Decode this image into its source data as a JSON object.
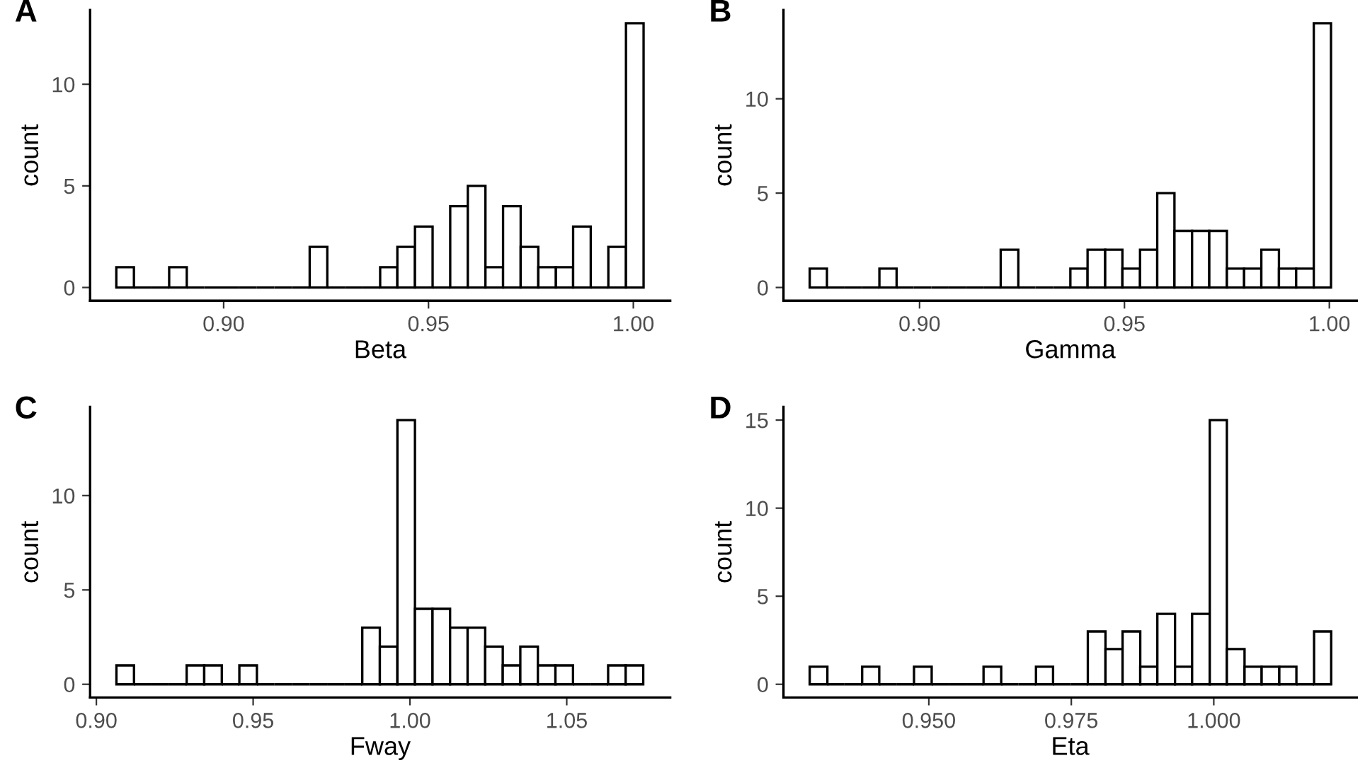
{
  "chart_data": [
    {
      "type": "histogram",
      "title": "A",
      "xlabel": "Beta",
      "ylabel": "count",
      "colors": [
        "#ffffff",
        "#000000",
        "#000000",
        "#ffffff",
        "#000000",
        "#000000",
        "#000000",
        "#000000",
        "#000000",
        "#000000",
        "#000000",
        "#ffffff",
        "#000000",
        "#000000",
        "#000000",
        "#ffffff",
        "#ffffff",
        "#ffffff",
        "#000000",
        "#ffffff",
        "#ffffff",
        "#ffffff",
        "#ffffff",
        "#ffffff",
        "#ffffff",
        "#ffffff",
        "#ffffff",
        "#000000",
        "#ffffff",
        "#ffffff"
      ],
      "bins": [
        0.8738,
        0.8781,
        0.8824,
        0.8867,
        0.891,
        0.8953,
        0.8995,
        0.9038,
        0.9081,
        0.9124,
        0.9167,
        0.921,
        0.9253,
        0.9296,
        0.9339,
        0.9382,
        0.9424,
        0.9467,
        0.951,
        0.9553,
        0.9596,
        0.9639,
        0.9682,
        0.9725,
        0.9768,
        0.9811,
        0.9853,
        0.9896,
        0.9939,
        0.9982,
        1.0025
      ],
      "values": [
        1,
        0,
        0,
        1,
        0,
        0,
        0,
        0,
        0,
        0,
        0,
        2,
        0,
        0,
        0,
        1,
        2,
        3,
        0,
        4,
        5,
        1,
        4,
        2,
        1,
        1,
        3,
        0,
        2,
        13
      ],
      "xlim": [
        0.8674,
        1.009
      ],
      "xticks": [
        {
          "value": 0.9,
          "label": "0.90"
        },
        {
          "value": 0.95,
          "label": "0.95"
        },
        {
          "value": 1.0,
          "label": "1.00"
        }
      ],
      "ylim": [
        -0.65,
        13.65
      ],
      "yticks": [
        0,
        5,
        10
      ],
      "grid": false
    },
    {
      "type": "histogram",
      "title": "B",
      "xlabel": "Gamma",
      "ylabel": "count",
      "colors": [
        "#ffffff",
        "#000000",
        "#000000",
        "#000000",
        "#ffffff",
        "#000000",
        "#000000",
        "#000000",
        "#000000",
        "#000000",
        "#000000",
        "#ffffff",
        "#000000",
        "#000000",
        "#000000",
        "#ffffff",
        "#ffffff",
        "#ffffff",
        "#ffffff",
        "#ffffff",
        "#ffffff",
        "#ffffff",
        "#ffffff",
        "#ffffff",
        "#ffffff",
        "#ffffff",
        "#ffffff",
        "#ffffff",
        "#ffffff",
        "#ffffff"
      ],
      "bins": [
        0.8732,
        0.8774,
        0.8817,
        0.8859,
        0.8902,
        0.8944,
        0.8986,
        0.9029,
        0.9071,
        0.9114,
        0.9156,
        0.9198,
        0.9241,
        0.9283,
        0.9326,
        0.9368,
        0.941,
        0.9453,
        0.9495,
        0.9538,
        0.958,
        0.9622,
        0.9665,
        0.9707,
        0.975,
        0.9792,
        0.9834,
        0.9877,
        0.9919,
        0.9962,
        1.0004
      ],
      "values": [
        1,
        0,
        0,
        0,
        1,
        0,
        0,
        0,
        0,
        0,
        0,
        2,
        0,
        0,
        0,
        1,
        2,
        2,
        1,
        2,
        5,
        3,
        3,
        3,
        1,
        1,
        2,
        1,
        1,
        14
      ],
      "xlim": [
        0.8668,
        1.0067
      ],
      "xticks": [
        {
          "value": 0.9,
          "label": "0.90"
        },
        {
          "value": 0.95,
          "label": "0.95"
        },
        {
          "value": 1.0,
          "label": "1.00"
        }
      ],
      "ylim": [
        -0.7,
        14.7
      ],
      "yticks": [
        0,
        5,
        10
      ],
      "grid": false
    },
    {
      "type": "histogram",
      "title": "C",
      "xlabel": "Fway",
      "ylabel": "count",
      "colors": [
        "#ffffff",
        "#000000",
        "#000000",
        "#000000",
        "#ffffff",
        "#ffffff",
        "#000000",
        "#ffffff",
        "#000000",
        "#000000",
        "#000000",
        "#000000",
        "#000000",
        "#000000",
        "#ffffff",
        "#ffffff",
        "#ffffff",
        "#ffffff",
        "#ffffff",
        "#ffffff",
        "#ffffff",
        "#ffffff",
        "#ffffff",
        "#ffffff",
        "#ffffff",
        "#ffffff",
        "#000000",
        "#000000",
        "#ffffff",
        "#ffffff"
      ],
      "bins": [
        0.9064,
        0.912,
        0.9176,
        0.9232,
        0.9288,
        0.9344,
        0.94,
        0.9456,
        0.9512,
        0.9568,
        0.9624,
        0.968,
        0.9736,
        0.9792,
        0.9848,
        0.9904,
        0.996,
        1.0016,
        1.0072,
        1.0128,
        1.0184,
        1.024,
        1.0296,
        1.0352,
        1.0408,
        1.0464,
        1.052,
        1.0576,
        1.0632,
        1.0688,
        1.0744
      ],
      "values": [
        1,
        0,
        0,
        0,
        1,
        1,
        0,
        1,
        0,
        0,
        0,
        0,
        0,
        0,
        3,
        2,
        14,
        4,
        4,
        3,
        3,
        2,
        1,
        2,
        1,
        1,
        0,
        0,
        1,
        1
      ],
      "xlim": [
        0.898,
        1.083
      ],
      "xticks": [
        {
          "value": 0.9,
          "label": "0.90"
        },
        {
          "value": 0.95,
          "label": "0.95"
        },
        {
          "value": 1.0,
          "label": "1.00"
        },
        {
          "value": 1.05,
          "label": "1.05"
        }
      ],
      "ylim": [
        -0.7,
        14.7
      ],
      "yticks": [
        0,
        5,
        10
      ],
      "grid": false
    },
    {
      "type": "histogram",
      "title": "D",
      "xlabel": "Eta",
      "ylabel": "count",
      "colors": [
        "#ffffff",
        "#000000",
        "#000000",
        "#ffffff",
        "#000000",
        "#000000",
        "#ffffff",
        "#000000",
        "#000000",
        "#000000",
        "#ffffff",
        "#000000",
        "#000000",
        "#ffffff",
        "#000000",
        "#000000",
        "#ffffff",
        "#ffffff",
        "#ffffff",
        "#ffffff",
        "#ffffff",
        "#ffffff",
        "#ffffff",
        "#ffffff",
        "#ffffff",
        "#ffffff",
        "#ffffff",
        "#ffffff",
        "#000000",
        "#ffffff"
      ],
      "bins": [
        0.9291,
        0.9322,
        0.9352,
        0.9383,
        0.9413,
        0.9444,
        0.9474,
        0.9505,
        0.9535,
        0.9566,
        0.9596,
        0.9627,
        0.9657,
        0.9688,
        0.9718,
        0.9749,
        0.9779,
        0.981,
        0.984,
        0.9871,
        0.9901,
        0.9932,
        0.9962,
        0.9993,
        1.0023,
        1.0054,
        1.0084,
        1.0115,
        1.0145,
        1.0176,
        1.0206
      ],
      "values": [
        1,
        0,
        0,
        1,
        0,
        0,
        1,
        0,
        0,
        0,
        1,
        0,
        0,
        1,
        0,
        0,
        3,
        2,
        3,
        1,
        4,
        1,
        4,
        15,
        2,
        1,
        1,
        1,
        0,
        3
      ],
      "xlim": [
        0.9245,
        1.0251
      ],
      "xticks": [
        {
          "value": 0.95,
          "label": "0.950"
        },
        {
          "value": 0.975,
          "label": "0.975"
        },
        {
          "value": 1.0,
          "label": "1.000"
        }
      ],
      "ylim": [
        -0.75,
        15.75
      ],
      "yticks": [
        0,
        5,
        10,
        15
      ],
      "grid": false
    }
  ]
}
